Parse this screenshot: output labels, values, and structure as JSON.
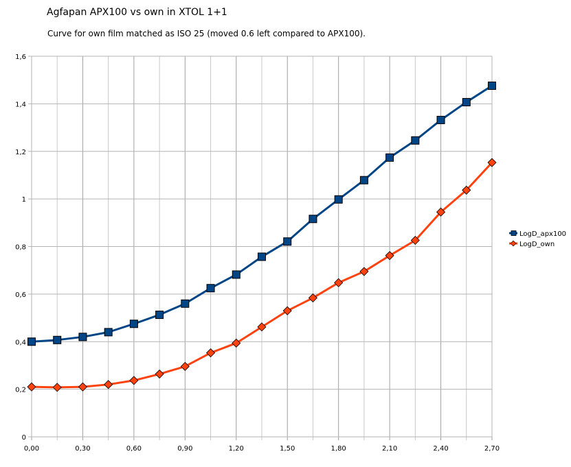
{
  "chart_data": {
    "type": "line",
    "title": "Agfapan APX100 vs own in XTOL 1+1",
    "subtitle": "Curve for own film matched as ISO 25 (moved 0.6 left compared to APX100).",
    "xlabel": "",
    "ylabel": "",
    "x": [
      0.0,
      0.15,
      0.3,
      0.45,
      0.6,
      0.75,
      0.9,
      1.05,
      1.2,
      1.35,
      1.5,
      1.65,
      1.8,
      1.95,
      2.1,
      2.25,
      2.4,
      2.55,
      2.7
    ],
    "x_tick_labels": [
      "0,00",
      "0,30",
      "0,60",
      "0,90",
      "1,20",
      "1,50",
      "1,80",
      "2,10",
      "2,40",
      "2,70"
    ],
    "x_tick_values": [
      0.0,
      0.3,
      0.6,
      0.9,
      1.2,
      1.5,
      1.8,
      2.1,
      2.4,
      2.7
    ],
    "xlim": [
      0,
      2.7
    ],
    "ylim": [
      0,
      1.6
    ],
    "y_tick_values": [
      0,
      0.2,
      0.4,
      0.6,
      0.8,
      1.0,
      1.2,
      1.4,
      1.6
    ],
    "y_tick_labels": [
      "0",
      "0,2",
      "0,4",
      "0,6",
      "0,8",
      "1",
      "1,2",
      "1,4",
      "1,6"
    ],
    "grid": true,
    "legend_position": "right",
    "series": [
      {
        "name": "LogD_apx100",
        "color": "#004586",
        "marker": "square",
        "values": [
          0.4,
          0.407,
          0.42,
          0.44,
          0.475,
          0.513,
          0.56,
          0.625,
          0.682,
          0.757,
          0.821,
          0.916,
          0.998,
          1.079,
          1.174,
          1.246,
          1.332,
          1.407,
          1.476
        ]
      },
      {
        "name": "LogD_own",
        "color": "#ff420e",
        "marker": "diamond",
        "values": [
          0.21,
          0.208,
          0.21,
          0.22,
          0.237,
          0.264,
          0.296,
          0.353,
          0.394,
          0.462,
          0.53,
          0.584,
          0.648,
          0.695,
          0.762,
          0.826,
          0.945,
          1.037,
          1.153
        ]
      }
    ]
  }
}
